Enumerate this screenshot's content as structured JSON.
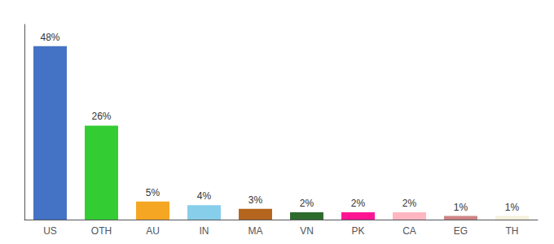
{
  "chart_data": {
    "type": "bar",
    "categories": [
      "US",
      "OTH",
      "AU",
      "IN",
      "MA",
      "VN",
      "PK",
      "CA",
      "EG",
      "TH"
    ],
    "values": [
      48,
      26,
      5,
      4,
      3,
      2,
      2,
      2,
      1,
      1
    ],
    "value_labels": [
      "48%",
      "26%",
      "5%",
      "4%",
      "3%",
      "2%",
      "2%",
      "2%",
      "1%",
      "1%"
    ],
    "colors": [
      "#4472c4",
      "#33cc33",
      "#f5a623",
      "#87ceeb",
      "#b5651d",
      "#2d6b2d",
      "#ff1493",
      "#ffb6c1",
      "#cd8585",
      "#f5f0dc"
    ],
    "ylim": [
      0,
      54
    ],
    "data_labels": true,
    "tick_labels": "x",
    "grid": false
  }
}
